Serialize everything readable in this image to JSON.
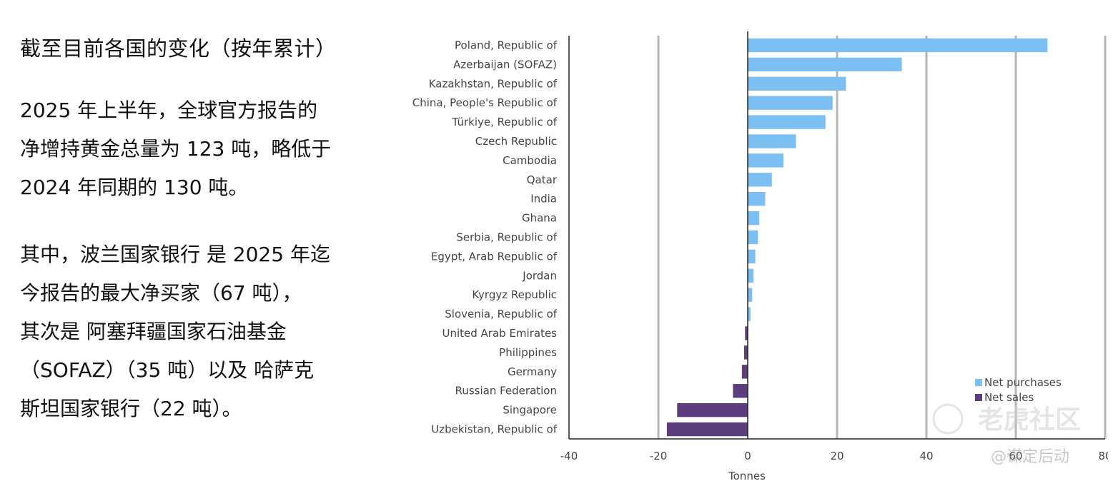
{
  "left_text": {
    "heading": "截至目前各国的变化（按年累计）",
    "para1": [
      "2025 年上半年，全球官方报告的",
      "净增持黄金总量为 123 吨，略低于",
      "2024 年同期的 130 吨。"
    ],
    "para2": [
      "其中，波兰国家银行 是 2025 年迄",
      "今报告的最大净买家（67 吨），",
      "其次是 阿塞拜疆国家石油基金",
      "（SOFAZ）（35 吨）以及 哈萨克",
      "斯坦国家银行（22 吨）。"
    ]
  },
  "watermark": {
    "main": "老虎社区",
    "sub": "@谋定后动"
  },
  "chart_data": {
    "type": "bar",
    "orientation": "horizontal",
    "xlabel": "Tonnes",
    "xlim": [
      -40,
      80
    ],
    "xticks": [
      -40,
      -20,
      0,
      20,
      40,
      60,
      80
    ],
    "grid": "vertical",
    "legend": {
      "position": "bottom-right",
      "entries": [
        {
          "name": "Net purchases",
          "color": "#7cbff2"
        },
        {
          "name": "Net sales",
          "color": "#5c3e7e"
        }
      ]
    },
    "categories": [
      "Poland, Republic of",
      "Azerbaijan (SOFAZ)",
      "Kazakhstan, Republic of",
      "China, People's Republic of",
      "Türkiye, Republic of",
      "Czech Republic",
      "Cambodia",
      "Qatar",
      "India",
      "Ghana",
      "Serbia, Republic of",
      "Egypt, Arab Republic of",
      "Jordan",
      "Kyrgyz Republic",
      "Slovenia, Republic of",
      "United Arab Emirates",
      "Philippines",
      "Germany",
      "Russian Federation",
      "Singapore",
      "Uzbekistan, Republic of"
    ],
    "values": [
      67.1,
      34.5,
      22.0,
      19.0,
      17.4,
      10.8,
      8.0,
      5.4,
      3.9,
      2.6,
      2.3,
      1.7,
      1.3,
      1.0,
      0.6,
      -0.6,
      -0.8,
      -1.3,
      -3.3,
      -15.8,
      -18.1
    ]
  }
}
